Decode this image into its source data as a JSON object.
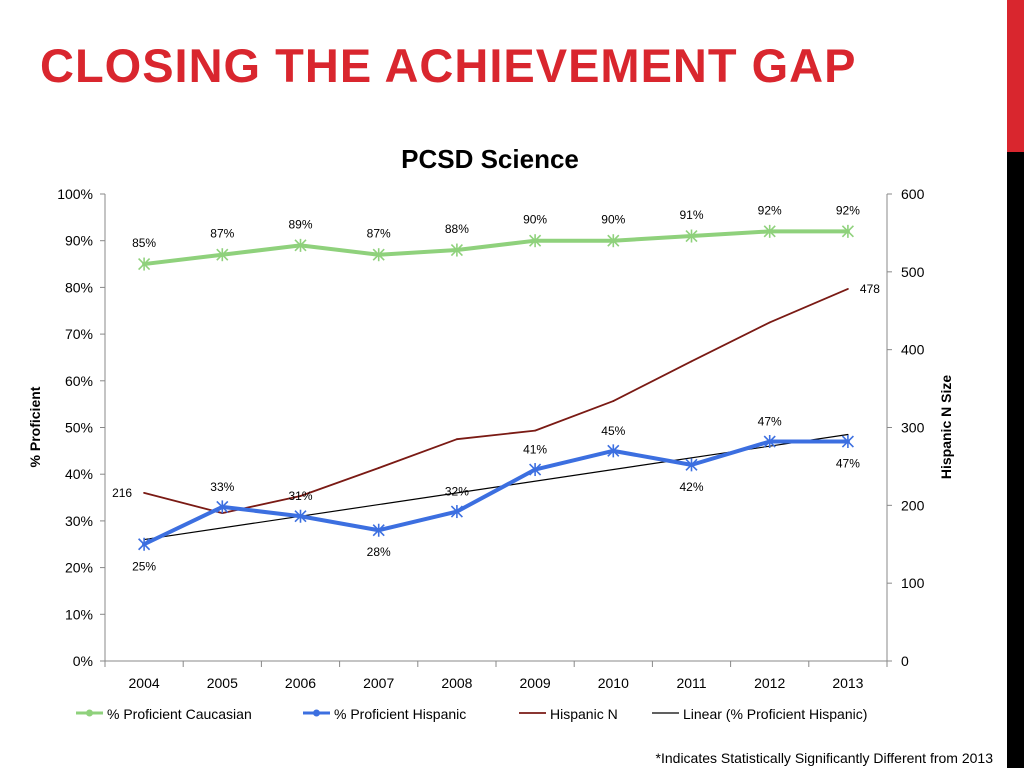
{
  "slide": {
    "title": "CLOSING THE ACHIEVEMENT GAP",
    "footnote": "*Indicates Statistically Significantly Different from 2013",
    "accent_colors": {
      "top": "#d9262e",
      "bottom": "#000000"
    }
  },
  "chart_data": {
    "type": "line",
    "title": "PCSD Science",
    "xlabel": "",
    "ylabel": "% Proficient",
    "y2label": "Hispanic N Size",
    "categories": [
      "2004",
      "2005",
      "2006",
      "2007",
      "2008",
      "2009",
      "2010",
      "2011",
      "2012",
      "2013"
    ],
    "ylim": [
      0,
      100
    ],
    "yticks": [
      "0%",
      "10%",
      "20%",
      "30%",
      "40%",
      "50%",
      "60%",
      "70%",
      "80%",
      "90%",
      "100%"
    ],
    "y2lim": [
      0,
      600
    ],
    "y2ticks": [
      "0",
      "100",
      "200",
      "300",
      "400",
      "500",
      "600"
    ],
    "grid": false,
    "legend_position": "bottom",
    "series": [
      {
        "name": "% Proficient Caucasian",
        "axis": "left",
        "color": "#8fd17c",
        "marker": "star",
        "values": [
          85,
          87,
          89,
          87,
          88,
          90,
          90,
          91,
          92,
          92
        ],
        "labels": [
          "85%",
          "87%",
          "89%",
          "87%",
          "88%",
          "90%",
          "90%",
          "91%",
          "92%",
          "92%"
        ]
      },
      {
        "name": "% Proficient Hispanic",
        "axis": "left",
        "color": "#3c6fe0",
        "marker": "star",
        "values": [
          25,
          33,
          31,
          28,
          32,
          41,
          45,
          42,
          47,
          47
        ],
        "labels": [
          "25%",
          "33%",
          "31%",
          "28%",
          "32%",
          "41%",
          "45%",
          "42%",
          "47%",
          "47%"
        ]
      },
      {
        "name": "Hispanic N",
        "axis": "right",
        "color": "#7a1a14",
        "marker": "none",
        "values": [
          216,
          190,
          212,
          248,
          285,
          296,
          334,
          385,
          435,
          478
        ],
        "point_labels": [
          {
            "index": 0,
            "text": "216"
          },
          {
            "index": 9,
            "text": "478"
          }
        ]
      },
      {
        "name": "Linear (% Proficient Hispanic)",
        "axis": "left",
        "color": "#000000",
        "marker": "none",
        "trend_of": "% Proficient Hispanic",
        "values": [
          26,
          28.5,
          31,
          33.5,
          36,
          38.5,
          41,
          43.5,
          46,
          48.5
        ]
      }
    ]
  }
}
